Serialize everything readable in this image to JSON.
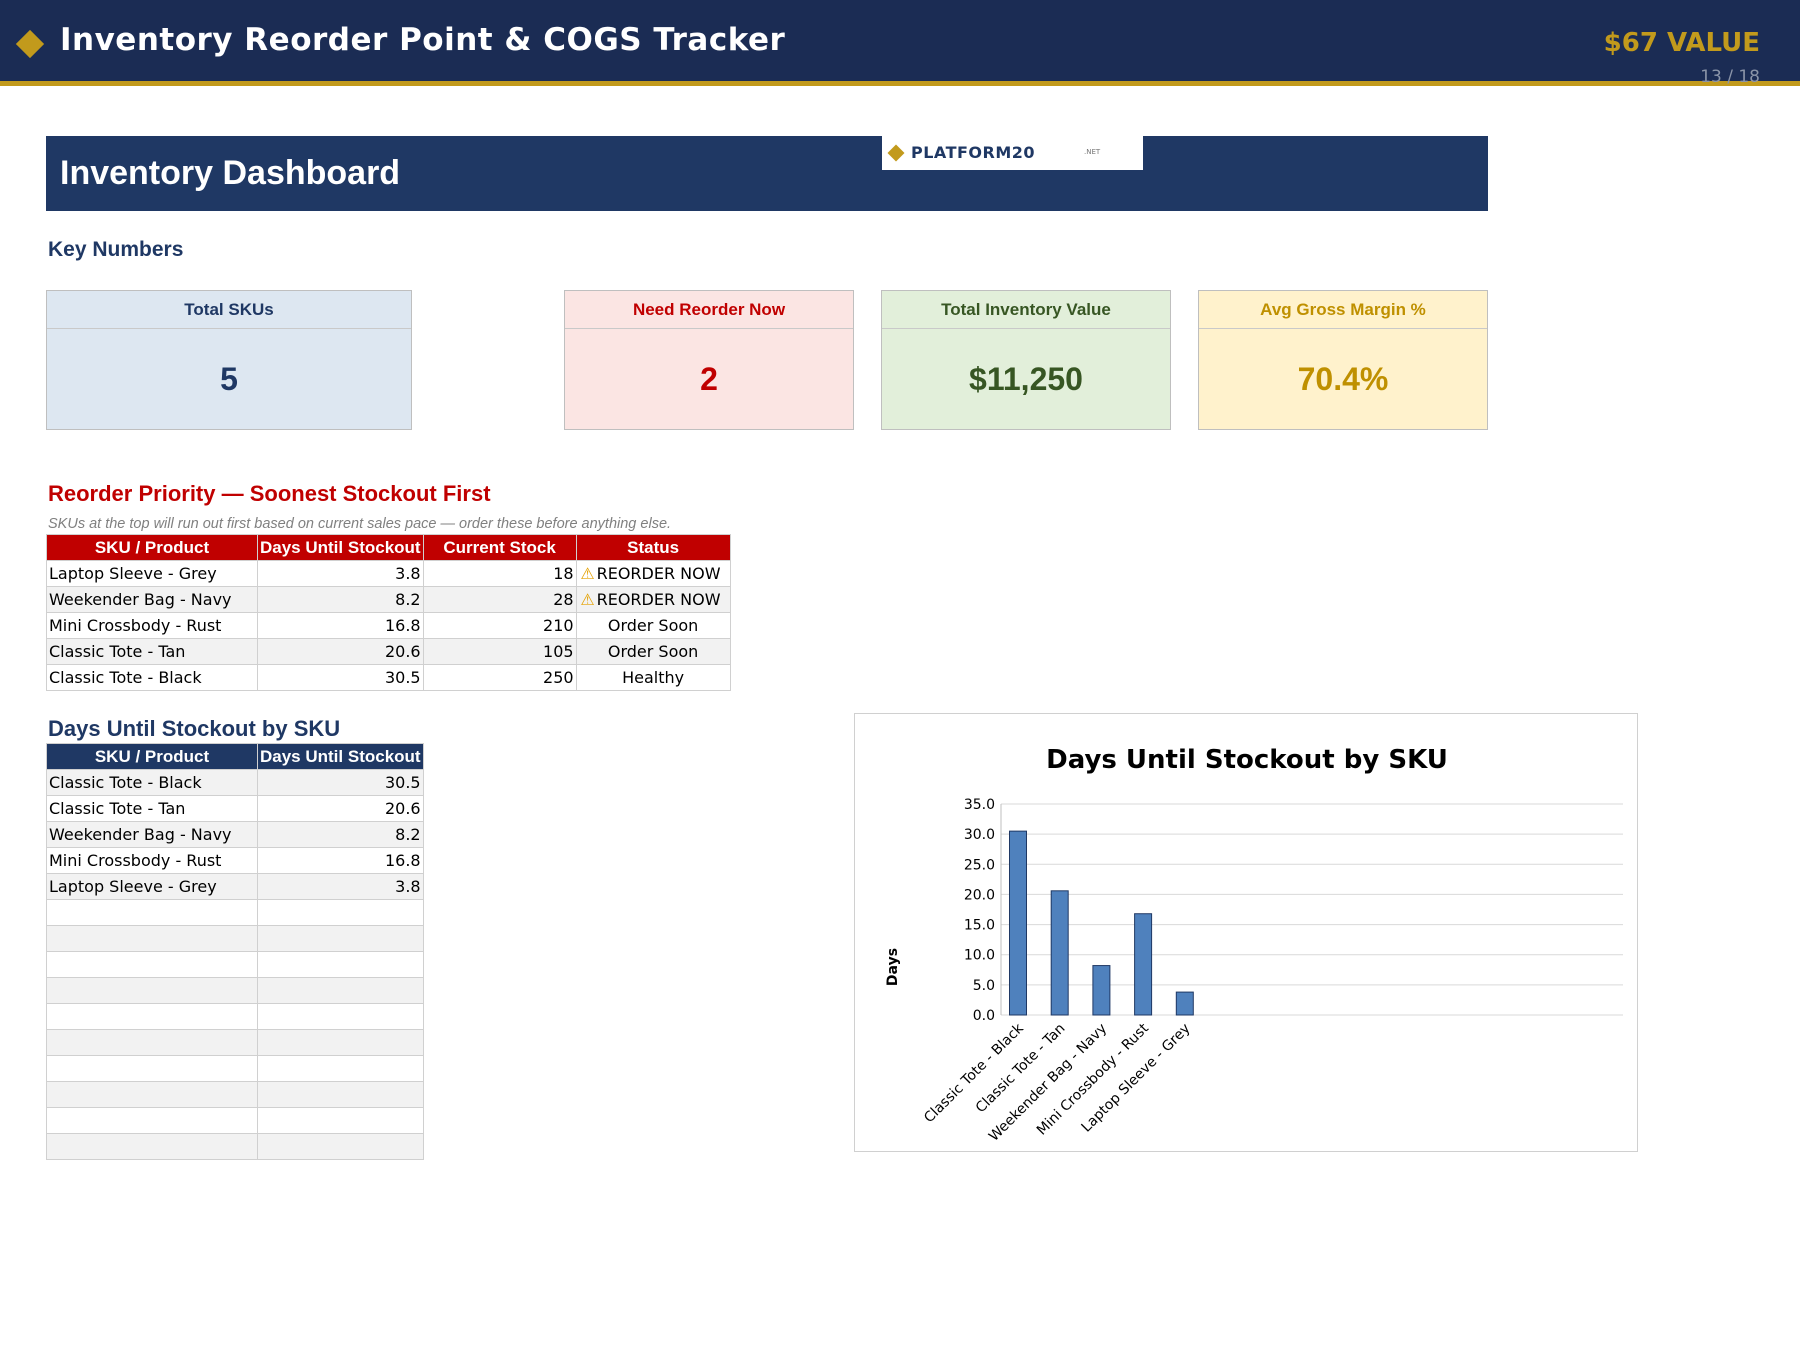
{
  "header": {
    "title": "Inventory Reorder Point & COGS Tracker",
    "value_badge": "$67 VALUE",
    "page_indicator": "13 / 18",
    "accent_color": "#c29a1c",
    "bg_color": "#1b2c54"
  },
  "dashboard": {
    "title": "Inventory Dashboard",
    "logo_text": "PLATFORM20",
    "logo_suffix": ".NET"
  },
  "key_numbers": {
    "heading": "Key Numbers",
    "cards": [
      {
        "label": "Total SKUs",
        "value": "5"
      },
      {
        "label": "Need Reorder Now",
        "value": "2"
      },
      {
        "label": "Total Inventory Value",
        "value": "$11,250"
      },
      {
        "label": "Avg Gross Margin %",
        "value": "70.4%"
      }
    ]
  },
  "priority": {
    "heading": "Reorder Priority — Soonest Stockout First",
    "subtitle": "SKUs at the top will run out first based on current sales pace — order these before anything else.",
    "columns": [
      "SKU / Product",
      "Days Until Stockout",
      "Current Stock",
      "Status"
    ],
    "rows": [
      {
        "sku": "Laptop Sleeve - Grey",
        "days": "3.8",
        "stock": "18",
        "status": "REORDER NOW",
        "warn": true
      },
      {
        "sku": "Weekender Bag - Navy",
        "days": "8.2",
        "stock": "28",
        "status": "REORDER NOW",
        "warn": true
      },
      {
        "sku": "Mini Crossbody - Rust",
        "days": "16.8",
        "stock": "210",
        "status": "Order Soon",
        "warn": false
      },
      {
        "sku": "Classic Tote - Tan",
        "days": "20.6",
        "stock": "105",
        "status": "Order Soon",
        "warn": false
      },
      {
        "sku": "Classic Tote - Black",
        "days": "30.5",
        "stock": "250",
        "status": "Healthy",
        "warn": false
      }
    ]
  },
  "stockout": {
    "heading": "Days Until Stockout by SKU",
    "columns": [
      "SKU / Product",
      "Days Until Stockout"
    ],
    "rows": [
      {
        "sku": "Classic Tote - Black",
        "days": "30.5"
      },
      {
        "sku": "Classic Tote - Tan",
        "days": "20.6"
      },
      {
        "sku": "Weekender Bag - Navy",
        "days": "8.2"
      },
      {
        "sku": "Mini Crossbody - Rust",
        "days": "16.8"
      },
      {
        "sku": "Laptop Sleeve - Grey",
        "days": "3.8"
      },
      {
        "sku": "",
        "days": ""
      },
      {
        "sku": "",
        "days": ""
      },
      {
        "sku": "",
        "days": ""
      },
      {
        "sku": "",
        "days": ""
      },
      {
        "sku": "",
        "days": ""
      },
      {
        "sku": "",
        "days": ""
      },
      {
        "sku": "",
        "days": ""
      },
      {
        "sku": "",
        "days": ""
      },
      {
        "sku": "",
        "days": ""
      },
      {
        "sku": "",
        "days": ""
      }
    ]
  },
  "chart_data": {
    "type": "bar",
    "title": "Days Until Stockout by SKU",
    "xlabel": "",
    "ylabel": "Days",
    "categories": [
      "Classic Tote - Black",
      "Classic Tote - Tan",
      "Weekender Bag - Navy",
      "Mini Crossbody - Rust",
      "Laptop Sleeve - Grey"
    ],
    "values": [
      30.5,
      20.6,
      8.2,
      16.8,
      3.8
    ],
    "ylim": [
      0,
      35
    ],
    "yticks": [
      "0.0",
      "5.0",
      "10.0",
      "15.0",
      "20.0",
      "25.0",
      "30.0",
      "35.0"
    ],
    "grid": true,
    "legend": "none",
    "bar_color": "#4f81bd"
  }
}
